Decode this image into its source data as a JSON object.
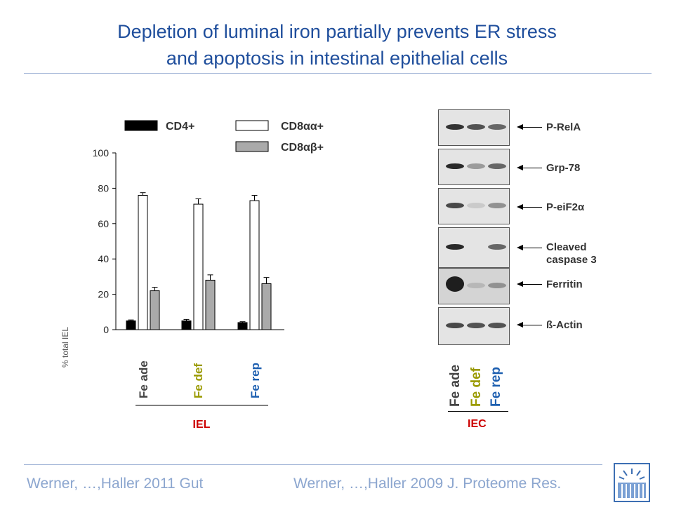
{
  "slide": {
    "title_line1": "Depletion of luminal iron partially prevents ER stress",
    "title_line2": "and apoptosis in intestinal epithelial cells",
    "footer_left": "Werner, …,Haller 2011 Gut",
    "footer_right": "Werner, …,Haller 2009 J. Proteome Res.",
    "colors": {
      "title": "#1f4e9c",
      "footer": "#8ca6cf",
      "fe_ade": "#444444",
      "fe_def": "#9a9a00",
      "fe_rep": "#1d5fb0",
      "group_label": "#cc0000"
    }
  },
  "chart_data": {
    "type": "bar",
    "categories": [
      "Fe ade",
      "Fe def",
      "Fe rep"
    ],
    "ylabel": "% total IEL",
    "ylim": [
      0,
      100
    ],
    "yticks": [
      0,
      20,
      40,
      60,
      80,
      100
    ],
    "group_label": "IEL",
    "legend_position": "top",
    "series": [
      {
        "name": "CD4+",
        "color": "#000000",
        "values": [
          5,
          5,
          4
        ],
        "errors": [
          0.5,
          0.8,
          0.5
        ]
      },
      {
        "name": "CD8αα+",
        "color": "#ffffff",
        "values": [
          76,
          71,
          73
        ],
        "errors": [
          1.5,
          3,
          3
        ]
      },
      {
        "name": "CD8αβ+",
        "color": "#aaaaaa",
        "values": [
          22,
          28,
          26
        ],
        "errors": [
          2,
          3,
          3.5
        ]
      }
    ]
  },
  "blot": {
    "bands": [
      "P-RelA",
      "Grp-78",
      "P-eiF2α",
      "Cleaved caspase 3",
      "Ferritin",
      "ß-Actin"
    ],
    "band_line1": [
      "P-RelA",
      "Grp-78",
      "P-eiF2α",
      "Cleaved",
      "Ferritin",
      "ß-Actin"
    ],
    "band_line2": [
      "",
      "",
      "",
      "caspase 3",
      "",
      ""
    ],
    "lanes": [
      "Fe ade",
      "Fe def",
      "Fe rep"
    ],
    "group_label": "IEC"
  }
}
